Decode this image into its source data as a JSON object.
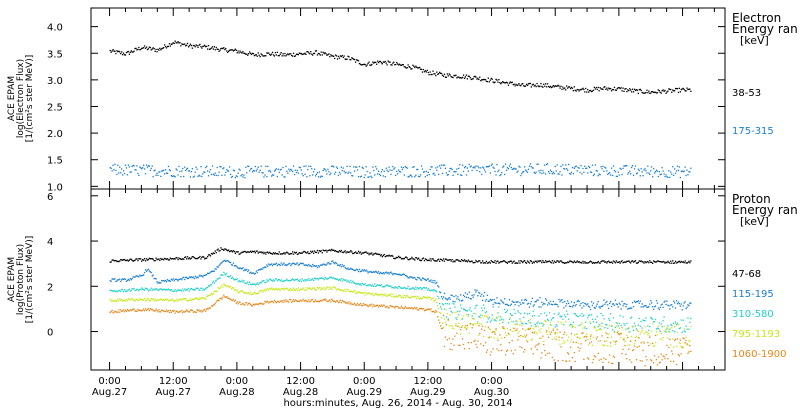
{
  "chart_data": [
    {
      "type": "scatter",
      "title": "",
      "ylabel": [
        "ACE EPAM",
        "log(Electron Flux)",
        "[1/(cm²s ster MeV)]"
      ],
      "ylim": [
        0.95,
        4.35
      ],
      "yticks": [
        1.0,
        1.5,
        2.0,
        2.5,
        3.0,
        3.5,
        4.0
      ],
      "ytick_labels": [
        "1.0",
        "1.5",
        "2.0",
        "2.5",
        "3.0",
        "3.5",
        "4.0"
      ],
      "legend_title": [
        "Electron",
        "Energy ran",
        "[keV]"
      ],
      "series": [
        {
          "name": "38-53",
          "color": "#000000",
          "points": [
            [
              0,
              3.55
            ],
            [
              3,
              3.5
            ],
            [
              6,
              3.62
            ],
            [
              9,
              3.57
            ],
            [
              12,
              3.72
            ],
            [
              15,
              3.65
            ],
            [
              18,
              3.63
            ],
            [
              21,
              3.58
            ],
            [
              24,
              3.55
            ],
            [
              27,
              3.48
            ],
            [
              30,
              3.5
            ],
            [
              33,
              3.48
            ],
            [
              36,
              3.5
            ],
            [
              39,
              3.52
            ],
            [
              42,
              3.45
            ],
            [
              45,
              3.42
            ],
            [
              48,
              3.3
            ],
            [
              51,
              3.35
            ],
            [
              54,
              3.3
            ],
            [
              57,
              3.25
            ],
            [
              60,
              3.15
            ],
            [
              63,
              3.1
            ],
            [
              66,
              3.08
            ],
            [
              69,
              3.05
            ],
            [
              72,
              3.0
            ],
            [
              75,
              2.95
            ],
            [
              78,
              2.9
            ],
            [
              81,
              2.92
            ],
            [
              84,
              2.88
            ],
            [
              87,
              2.85
            ],
            [
              90,
              2.82
            ],
            [
              93,
              2.85
            ],
            [
              96,
              2.84
            ],
            [
              99,
              2.8
            ],
            [
              102,
              2.78
            ],
            [
              105,
              2.8
            ],
            [
              108,
              2.82
            ],
            [
              109.5,
              2.82
            ]
          ]
        },
        {
          "name": "175-315",
          "color": "#1a7fd4",
          "points": [
            [
              0,
              1.32
            ],
            [
              12,
              1.3
            ],
            [
              24,
              1.28
            ],
            [
              36,
              1.3
            ],
            [
              48,
              1.28
            ],
            [
              60,
              1.3
            ],
            [
              72,
              1.32
            ],
            [
              84,
              1.33
            ],
            [
              96,
              1.3
            ],
            [
              109.5,
              1.28
            ]
          ]
        }
      ]
    },
    {
      "type": "scatter",
      "title": "",
      "ylabel": [
        "ACE EPAM",
        "log(Proton Flux)",
        "[1/(cm²s ster MeV)]"
      ],
      "ylim": [
        -1.7,
        6.3
      ],
      "yticks": [
        0,
        2,
        4,
        6
      ],
      "ytick_labels": [
        "0",
        "2",
        "4",
        "6"
      ],
      "legend_title": [
        "Proton",
        "Energy ran",
        "[keV]"
      ],
      "series": [
        {
          "name": "47-68",
          "color": "#000000",
          "points": [
            [
              0,
              3.15
            ],
            [
              6,
              3.2
            ],
            [
              12,
              3.25
            ],
            [
              18,
              3.3
            ],
            [
              21,
              3.7
            ],
            [
              24,
              3.5
            ],
            [
              27,
              3.55
            ],
            [
              30,
              3.5
            ],
            [
              36,
              3.5
            ],
            [
              42,
              3.6
            ],
            [
              48,
              3.5
            ],
            [
              54,
              3.3
            ],
            [
              60,
              3.2
            ],
            [
              66,
              3.15
            ],
            [
              72,
              3.1
            ],
            [
              78,
              3.1
            ],
            [
              84,
              3.1
            ],
            [
              90,
              3.1
            ],
            [
              96,
              3.1
            ],
            [
              102,
              3.1
            ],
            [
              109.5,
              3.1
            ]
          ]
        },
        {
          "name": "115-195",
          "color": "#1a7fd4",
          "points": [
            [
              0,
              2.3
            ],
            [
              3,
              2.3
            ],
            [
              6,
              2.5
            ],
            [
              7,
              2.8
            ],
            [
              9,
              2.2
            ],
            [
              12,
              2.3
            ],
            [
              15,
              2.4
            ],
            [
              18,
              2.5
            ],
            [
              20,
              2.8
            ],
            [
              21.5,
              3.2
            ],
            [
              24,
              2.9
            ],
            [
              27,
              2.6
            ],
            [
              30,
              3.0
            ],
            [
              33,
              3.0
            ],
            [
              36,
              3.0
            ],
            [
              39,
              2.9
            ],
            [
              42,
              3.1
            ],
            [
              45,
              2.8
            ],
            [
              48,
              2.7
            ],
            [
              51,
              2.6
            ],
            [
              54,
              2.6
            ],
            [
              57,
              2.4
            ],
            [
              60,
              2.3
            ],
            [
              61.5,
              2.2
            ],
            [
              62.5,
              1.6
            ],
            [
              66,
              1.5
            ],
            [
              69,
              1.7
            ],
            [
              72,
              1.4
            ],
            [
              78,
              1.3
            ],
            [
              84,
              1.3
            ],
            [
              90,
              1.2
            ],
            [
              96,
              1.2
            ],
            [
              102,
              1.2
            ],
            [
              109.5,
              1.2
            ]
          ]
        },
        {
          "name": "310-580",
          "color": "#22d1c8",
          "points": [
            [
              0,
              1.8
            ],
            [
              6,
              1.9
            ],
            [
              12,
              1.85
            ],
            [
              18,
              1.9
            ],
            [
              21.5,
              2.6
            ],
            [
              24,
              2.3
            ],
            [
              27,
              2.1
            ],
            [
              30,
              2.3
            ],
            [
              36,
              2.3
            ],
            [
              42,
              2.4
            ],
            [
              48,
              2.1
            ],
            [
              54,
              2.0
            ],
            [
              60,
              1.9
            ],
            [
              61.5,
              1.8
            ],
            [
              62.5,
              1.0
            ],
            [
              66,
              0.9
            ],
            [
              72,
              0.8
            ],
            [
              78,
              0.6
            ],
            [
              84,
              0.55
            ],
            [
              90,
              0.5
            ],
            [
              96,
              0.4
            ],
            [
              102,
              0.35
            ],
            [
              109.5,
              0.3
            ]
          ]
        },
        {
          "name": "795-1193",
          "color": "#c7e81a",
          "points": [
            [
              0,
              1.4
            ],
            [
              6,
              1.45
            ],
            [
              12,
              1.4
            ],
            [
              18,
              1.5
            ],
            [
              21.5,
              2.1
            ],
            [
              24,
              1.8
            ],
            [
              27,
              1.7
            ],
            [
              30,
              1.9
            ],
            [
              36,
              1.9
            ],
            [
              42,
              1.95
            ],
            [
              48,
              1.7
            ],
            [
              54,
              1.6
            ],
            [
              60,
              1.5
            ],
            [
              61.5,
              1.4
            ],
            [
              62.5,
              0.6
            ],
            [
              66,
              0.4
            ],
            [
              72,
              0.2
            ],
            [
              78,
              0.1
            ],
            [
              84,
              0.0
            ],
            [
              90,
              -0.05
            ],
            [
              96,
              -0.1
            ],
            [
              102,
              -0.15
            ],
            [
              109.5,
              -0.2
            ]
          ]
        },
        {
          "name": "1060-1900",
          "color": "#e8871a",
          "points": [
            [
              0,
              0.9
            ],
            [
              6,
              1.0
            ],
            [
              12,
              0.9
            ],
            [
              18,
              0.95
            ],
            [
              21.5,
              1.6
            ],
            [
              24,
              1.3
            ],
            [
              27,
              1.2
            ],
            [
              30,
              1.35
            ],
            [
              36,
              1.4
            ],
            [
              42,
              1.4
            ],
            [
              48,
              1.2
            ],
            [
              54,
              1.1
            ],
            [
              60,
              1.0
            ],
            [
              61.5,
              0.9
            ],
            [
              62.5,
              0.1
            ],
            [
              66,
              -0.2
            ],
            [
              72,
              -0.4
            ],
            [
              78,
              -0.5
            ],
            [
              84,
              -0.6
            ],
            [
              90,
              -0.6
            ],
            [
              96,
              -0.7
            ],
            [
              102,
              -0.8
            ],
            [
              109.5,
              -0.9
            ]
          ]
        }
      ]
    }
  ],
  "x_axis": {
    "xlim": [
      -3.5,
      116
    ],
    "ticks": [
      {
        "hour": 0,
        "time": "0:00",
        "date": "Aug.27"
      },
      {
        "hour": 12,
        "time": "12:00",
        "date": "Aug.27"
      },
      {
        "hour": 24,
        "time": "0:00",
        "date": "Aug.28"
      },
      {
        "hour": 36,
        "time": "12:00",
        "date": "Aug.28"
      },
      {
        "hour": 48,
        "time": "0:00",
        "date": "Aug.29"
      },
      {
        "hour": 60,
        "time": "12:00",
        "date": "Aug.29"
      },
      {
        "hour": 72,
        "time": "0:00",
        "date": "Aug.30"
      }
    ],
    "minor_step": 3,
    "label": "hours:minutes, Aug. 26, 2014 - Aug. 30, 2014"
  }
}
